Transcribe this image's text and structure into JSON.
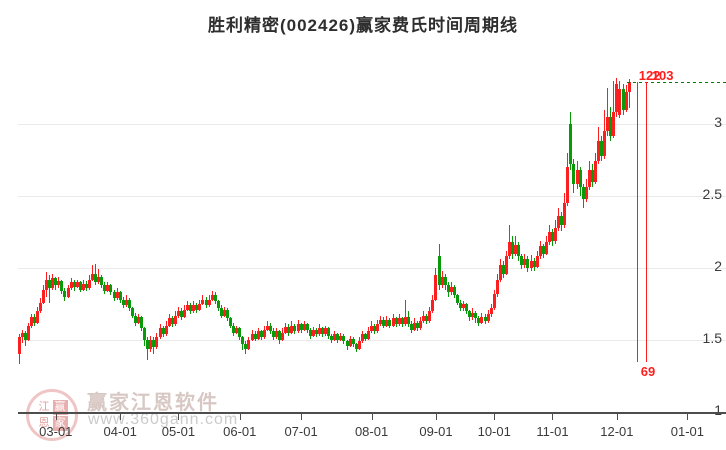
{
  "title": "胜利精密(002426)赢家费氏时间周期线",
  "watermark": {
    "seal_chars": [
      "江",
      "赢",
      "恩",
      "家"
    ],
    "name": "赢家江恩软件",
    "url": "www.360gann.com"
  },
  "chart_data": {
    "type": "candlestick",
    "title": "胜利精密(002426)赢家费氏时间周期线",
    "xlabel": "",
    "ylabel": "",
    "ylim": [
      1,
      3.45
    ],
    "grid": true,
    "legend": "none",
    "y_ticks": [
      3,
      2.5,
      2,
      1.5,
      1
    ],
    "x_ticks": [
      {
        "label": "03-01",
        "day": 12
      },
      {
        "label": "04-01",
        "day": 33
      },
      {
        "label": "05-01",
        "day": 52
      },
      {
        "label": "06-01",
        "day": 72
      },
      {
        "label": "07-01",
        "day": 92
      },
      {
        "label": "08-01",
        "day": 115
      },
      {
        "label": "09-01",
        "day": 136
      },
      {
        "label": "10-01",
        "day": 155
      },
      {
        "label": "11-01",
        "day": 174
      },
      {
        "label": "12-01",
        "day": 195
      },
      {
        "label": "01-01",
        "day": 218
      }
    ],
    "last_price_line": 3.29,
    "fib_time_lines": [
      {
        "day": 201.5,
        "label": "122"
      },
      {
        "day": 204.5,
        "label": "103"
      }
    ],
    "fib_bottom_label": "69",
    "fib_line_price_range": [
      3.29,
      1.35
    ],
    "colors": {
      "up": "#fb1f1f",
      "down": "#089a08",
      "grid": "#e9e9e9",
      "axis": "#4d4d4d",
      "fib": "#ff1e1e",
      "price_line": "#0a7a0a",
      "label_red": "#ff1e1e"
    },
    "candles": [
      [
        1.4,
        1.54,
        1.33,
        1.52
      ],
      [
        1.52,
        1.57,
        1.48,
        1.55
      ],
      [
        1.55,
        1.56,
        1.46,
        1.5
      ],
      [
        1.5,
        1.62,
        1.49,
        1.6
      ],
      [
        1.6,
        1.68,
        1.58,
        1.66
      ],
      [
        1.66,
        1.68,
        1.6,
        1.62
      ],
      [
        1.62,
        1.73,
        1.61,
        1.7
      ],
      [
        1.7,
        1.79,
        1.69,
        1.76
      ],
      [
        1.76,
        1.88,
        1.75,
        1.85
      ],
      [
        1.85,
        1.97,
        1.8,
        1.92
      ],
      [
        1.92,
        1.95,
        1.76,
        1.86
      ],
      [
        1.86,
        1.96,
        1.85,
        1.93
      ],
      [
        1.93,
        1.94,
        1.85,
        1.88
      ],
      [
        1.88,
        1.94,
        1.86,
        1.91
      ],
      [
        1.91,
        1.92,
        1.82,
        1.84
      ],
      [
        1.84,
        1.86,
        1.77,
        1.8
      ],
      [
        1.8,
        1.88,
        1.79,
        1.86
      ],
      [
        1.86,
        1.93,
        1.85,
        1.9
      ],
      [
        1.9,
        1.92,
        1.84,
        1.87
      ],
      [
        1.87,
        1.92,
        1.86,
        1.9
      ],
      [
        1.9,
        1.91,
        1.83,
        1.85
      ],
      [
        1.85,
        1.92,
        1.84,
        1.89
      ],
      [
        1.89,
        1.91,
        1.84,
        1.86
      ],
      [
        1.86,
        1.95,
        1.85,
        1.92
      ],
      [
        1.92,
        2.02,
        1.91,
        1.96
      ],
      [
        1.96,
        2.03,
        1.88,
        1.9
      ],
      [
        1.9,
        1.99,
        1.89,
        1.94
      ],
      [
        1.94,
        1.95,
        1.86,
        1.88
      ],
      [
        1.88,
        1.9,
        1.82,
        1.84
      ],
      [
        1.84,
        1.9,
        1.83,
        1.88
      ],
      [
        1.88,
        1.89,
        1.81,
        1.83
      ],
      [
        1.83,
        1.85,
        1.77,
        1.79
      ],
      [
        1.79,
        1.86,
        1.78,
        1.83
      ],
      [
        1.83,
        1.84,
        1.76,
        1.78
      ],
      [
        1.78,
        1.8,
        1.72,
        1.74
      ],
      [
        1.74,
        1.81,
        1.73,
        1.78
      ],
      [
        1.78,
        1.79,
        1.7,
        1.72
      ],
      [
        1.72,
        1.73,
        1.65,
        1.67
      ],
      [
        1.67,
        1.69,
        1.6,
        1.62
      ],
      [
        1.62,
        1.68,
        1.61,
        1.66
      ],
      [
        1.66,
        1.67,
        1.56,
        1.58
      ],
      [
        1.58,
        1.59,
        1.46,
        1.5
      ],
      [
        1.5,
        1.52,
        1.36,
        1.44
      ],
      [
        1.44,
        1.53,
        1.42,
        1.5
      ],
      [
        1.5,
        1.52,
        1.4,
        1.45
      ],
      [
        1.45,
        1.55,
        1.44,
        1.52
      ],
      [
        1.52,
        1.61,
        1.51,
        1.58
      ],
      [
        1.58,
        1.6,
        1.52,
        1.54
      ],
      [
        1.54,
        1.63,
        1.53,
        1.6
      ],
      [
        1.6,
        1.68,
        1.59,
        1.65
      ],
      [
        1.65,
        1.67,
        1.59,
        1.61
      ],
      [
        1.61,
        1.7,
        1.6,
        1.67
      ],
      [
        1.67,
        1.73,
        1.65,
        1.7
      ],
      [
        1.7,
        1.72,
        1.64,
        1.66
      ],
      [
        1.66,
        1.74,
        1.65,
        1.71
      ],
      [
        1.71,
        1.77,
        1.7,
        1.74
      ],
      [
        1.74,
        1.76,
        1.68,
        1.7
      ],
      [
        1.7,
        1.77,
        1.69,
        1.74
      ],
      [
        1.74,
        1.76,
        1.69,
        1.71
      ],
      [
        1.71,
        1.78,
        1.7,
        1.75
      ],
      [
        1.75,
        1.81,
        1.74,
        1.78
      ],
      [
        1.78,
        1.8,
        1.72,
        1.74
      ],
      [
        1.74,
        1.81,
        1.73,
        1.78
      ],
      [
        1.78,
        1.84,
        1.77,
        1.81
      ],
      [
        1.81,
        1.83,
        1.75,
        1.77
      ],
      [
        1.77,
        1.78,
        1.7,
        1.72
      ],
      [
        1.72,
        1.74,
        1.65,
        1.67
      ],
      [
        1.67,
        1.73,
        1.66,
        1.71
      ],
      [
        1.71,
        1.72,
        1.63,
        1.65
      ],
      [
        1.65,
        1.66,
        1.58,
        1.6
      ],
      [
        1.6,
        1.62,
        1.53,
        1.55
      ],
      [
        1.55,
        1.6,
        1.54,
        1.58
      ],
      [
        1.58,
        1.59,
        1.5,
        1.52
      ],
      [
        1.52,
        1.53,
        1.43,
        1.47
      ],
      [
        1.47,
        1.49,
        1.4,
        1.44
      ],
      [
        1.44,
        1.52,
        1.43,
        1.5
      ],
      [
        1.5,
        1.57,
        1.49,
        1.54
      ],
      [
        1.54,
        1.56,
        1.49,
        1.51
      ],
      [
        1.51,
        1.58,
        1.5,
        1.56
      ],
      [
        1.56,
        1.57,
        1.5,
        1.52
      ],
      [
        1.52,
        1.6,
        1.51,
        1.57
      ],
      [
        1.57,
        1.63,
        1.56,
        1.6
      ],
      [
        1.6,
        1.62,
        1.54,
        1.56
      ],
      [
        1.56,
        1.58,
        1.5,
        1.52
      ],
      [
        1.52,
        1.58,
        1.51,
        1.56
      ],
      [
        1.56,
        1.57,
        1.47,
        1.5
      ],
      [
        1.5,
        1.58,
        1.49,
        1.55
      ],
      [
        1.55,
        1.62,
        1.54,
        1.59
      ],
      [
        1.59,
        1.61,
        1.53,
        1.55
      ],
      [
        1.55,
        1.63,
        1.54,
        1.6
      ],
      [
        1.6,
        1.61,
        1.54,
        1.56
      ],
      [
        1.56,
        1.64,
        1.55,
        1.61
      ],
      [
        1.61,
        1.62,
        1.55,
        1.57
      ],
      [
        1.57,
        1.63,
        1.56,
        1.61
      ],
      [
        1.61,
        1.62,
        1.55,
        1.57
      ],
      [
        1.57,
        1.58,
        1.51,
        1.53
      ],
      [
        1.53,
        1.59,
        1.52,
        1.57
      ],
      [
        1.57,
        1.58,
        1.52,
        1.54
      ],
      [
        1.54,
        1.61,
        1.53,
        1.58
      ],
      [
        1.58,
        1.59,
        1.52,
        1.54
      ],
      [
        1.54,
        1.6,
        1.53,
        1.58
      ],
      [
        1.58,
        1.59,
        1.51,
        1.53
      ],
      [
        1.53,
        1.54,
        1.48,
        1.5
      ],
      [
        1.5,
        1.56,
        1.49,
        1.54
      ],
      [
        1.54,
        1.55,
        1.48,
        1.5
      ],
      [
        1.5,
        1.55,
        1.49,
        1.53
      ],
      [
        1.53,
        1.54,
        1.47,
        1.49
      ],
      [
        1.49,
        1.5,
        1.43,
        1.46
      ],
      [
        1.46,
        1.53,
        1.45,
        1.51
      ],
      [
        1.51,
        1.52,
        1.45,
        1.47
      ],
      [
        1.47,
        1.48,
        1.42,
        1.44
      ],
      [
        1.44,
        1.52,
        1.43,
        1.49
      ],
      [
        1.49,
        1.56,
        1.48,
        1.54
      ],
      [
        1.54,
        1.55,
        1.49,
        1.51
      ],
      [
        1.51,
        1.59,
        1.5,
        1.56
      ],
      [
        1.56,
        1.63,
        1.55,
        1.6
      ],
      [
        1.6,
        1.61,
        1.54,
        1.56
      ],
      [
        1.56,
        1.64,
        1.55,
        1.61
      ],
      [
        1.61,
        1.67,
        1.6,
        1.64
      ],
      [
        1.64,
        1.66,
        1.58,
        1.6
      ],
      [
        1.6,
        1.67,
        1.59,
        1.64
      ],
      [
        1.64,
        1.65,
        1.58,
        1.6
      ],
      [
        1.6,
        1.68,
        1.59,
        1.65
      ],
      [
        1.65,
        1.66,
        1.59,
        1.61
      ],
      [
        1.61,
        1.68,
        1.6,
        1.65
      ],
      [
        1.65,
        1.66,
        1.59,
        1.61
      ],
      [
        1.61,
        1.78,
        1.6,
        1.66
      ],
      [
        1.66,
        1.7,
        1.59,
        1.61
      ],
      [
        1.61,
        1.63,
        1.55,
        1.57
      ],
      [
        1.57,
        1.65,
        1.56,
        1.62
      ],
      [
        1.62,
        1.63,
        1.56,
        1.58
      ],
      [
        1.58,
        1.66,
        1.57,
        1.63
      ],
      [
        1.63,
        1.7,
        1.62,
        1.67
      ],
      [
        1.67,
        1.68,
        1.61,
        1.63
      ],
      [
        1.63,
        1.73,
        1.62,
        1.7
      ],
      [
        1.7,
        1.81,
        1.69,
        1.78
      ],
      [
        1.78,
        2.0,
        1.77,
        1.95
      ],
      [
        2.08,
        2.17,
        1.85,
        1.88
      ],
      [
        1.88,
        1.98,
        1.86,
        1.94
      ],
      [
        1.94,
        1.96,
        1.85,
        1.88
      ],
      [
        1.88,
        1.9,
        1.8,
        1.83
      ],
      [
        1.83,
        1.9,
        1.81,
        1.87
      ],
      [
        1.87,
        1.88,
        1.79,
        1.81
      ],
      [
        1.81,
        1.82,
        1.74,
        1.76
      ],
      [
        1.76,
        1.78,
        1.7,
        1.72
      ],
      [
        1.72,
        1.77,
        1.7,
        1.75
      ],
      [
        1.75,
        1.76,
        1.68,
        1.7
      ],
      [
        1.7,
        1.71,
        1.63,
        1.66
      ],
      [
        1.66,
        1.72,
        1.64,
        1.69
      ],
      [
        1.69,
        1.7,
        1.62,
        1.65
      ],
      [
        1.65,
        1.67,
        1.6,
        1.62
      ],
      [
        1.62,
        1.69,
        1.61,
        1.66
      ],
      [
        1.66,
        1.68,
        1.61,
        1.63
      ],
      [
        1.63,
        1.71,
        1.62,
        1.68
      ],
      [
        1.68,
        1.75,
        1.66,
        1.72
      ],
      [
        1.72,
        1.85,
        1.71,
        1.82
      ],
      [
        1.82,
        1.96,
        1.8,
        1.92
      ],
      [
        1.92,
        2.06,
        1.9,
        2.02
      ],
      [
        2.02,
        2.05,
        1.93,
        1.96
      ],
      [
        1.96,
        2.12,
        1.95,
        2.08
      ],
      [
        2.08,
        2.3,
        2.06,
        2.18
      ],
      [
        2.18,
        2.22,
        2.06,
        2.1
      ],
      [
        2.1,
        2.22,
        2.08,
        2.16
      ],
      [
        2.16,
        2.18,
        2.05,
        2.08
      ],
      [
        2.08,
        2.1,
        1.99,
        2.02
      ],
      [
        2.02,
        2.1,
        2.0,
        2.06
      ],
      [
        2.06,
        2.08,
        1.97,
        2.0
      ],
      [
        2.0,
        2.09,
        1.98,
        2.05
      ],
      [
        2.05,
        2.07,
        1.98,
        2.01
      ],
      [
        2.01,
        2.12,
        2.0,
        2.08
      ],
      [
        2.08,
        2.19,
        2.06,
        2.15
      ],
      [
        2.15,
        2.17,
        2.07,
        2.1
      ],
      [
        2.1,
        2.22,
        2.09,
        2.18
      ],
      [
        2.18,
        2.3,
        2.16,
        2.25
      ],
      [
        2.25,
        2.27,
        2.15,
        2.19
      ],
      [
        2.19,
        2.33,
        2.17,
        2.28
      ],
      [
        2.28,
        2.42,
        2.26,
        2.36
      ],
      [
        2.36,
        2.39,
        2.26,
        2.3
      ],
      [
        2.3,
        2.52,
        2.28,
        2.45
      ],
      [
        2.45,
        2.8,
        2.43,
        2.7
      ],
      [
        3.0,
        3.08,
        2.68,
        2.72
      ],
      [
        2.72,
        2.76,
        2.52,
        2.58
      ],
      [
        2.58,
        2.74,
        2.55,
        2.68
      ],
      [
        2.68,
        2.7,
        2.5,
        2.56
      ],
      [
        2.56,
        2.58,
        2.42,
        2.48
      ],
      [
        2.48,
        2.62,
        2.46,
        2.56
      ],
      [
        2.56,
        2.74,
        2.54,
        2.68
      ],
      [
        2.68,
        2.72,
        2.56,
        2.6
      ],
      [
        2.6,
        2.8,
        2.58,
        2.74
      ],
      [
        2.74,
        2.98,
        2.72,
        2.88
      ],
      [
        2.88,
        2.92,
        2.74,
        2.78
      ],
      [
        2.78,
        3.1,
        2.76,
        2.95
      ],
      [
        2.95,
        3.25,
        2.92,
        3.05
      ],
      [
        3.05,
        3.12,
        2.88,
        2.92
      ],
      [
        2.92,
        3.3,
        2.9,
        3.08
      ],
      [
        3.08,
        3.32,
        3.05,
        3.28
      ],
      [
        3.06,
        3.3,
        3.04,
        3.24
      ],
      [
        3.24,
        3.28,
        3.06,
        3.1
      ],
      [
        3.1,
        3.27,
        3.08,
        3.22
      ],
      [
        3.22,
        3.31,
        3.11,
        3.29
      ]
    ]
  }
}
